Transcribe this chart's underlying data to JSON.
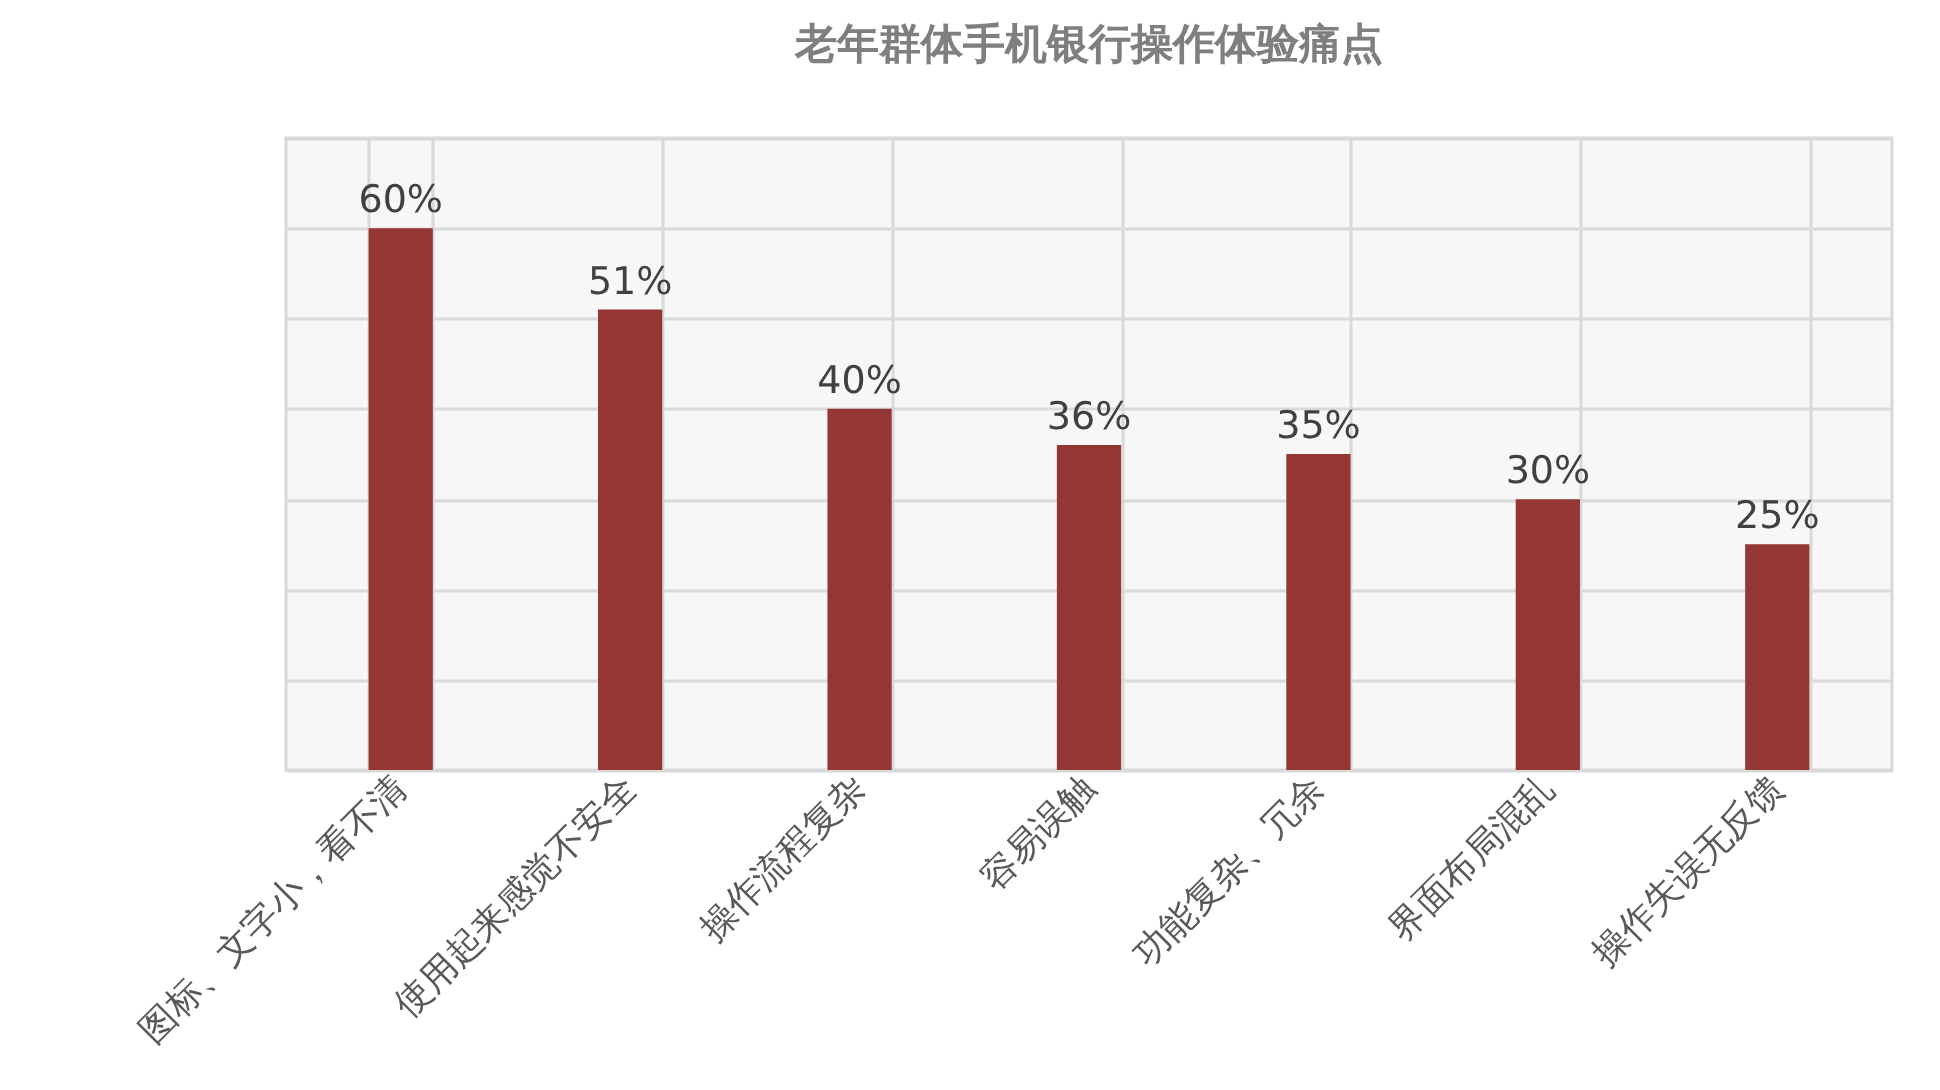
{
  "chart_data": {
    "type": "bar",
    "title": "老年群体手机银行操作体验痛点",
    "categories": [
      "图标、文字小，看不清",
      "使用起来感觉不安全",
      "操作流程复杂",
      "容易误触",
      "功能复杂、冗余",
      "界面布局混乱",
      "操作失误无反馈"
    ],
    "values": [
      60,
      51,
      40,
      36,
      35,
      30,
      25
    ],
    "value_labels": [
      "60%",
      "51%",
      "40%",
      "36%",
      "35%",
      "30%",
      "25%"
    ],
    "color": "#943634",
    "ylim": [
      0,
      70
    ],
    "yticks": [
      {
        "value": 0,
        "label": null
      },
      {
        "value": 10,
        "label": null
      },
      {
        "value": 20,
        "label": null
      },
      {
        "value": 30,
        "label": null
      },
      {
        "value": 40,
        "label": null
      },
      {
        "value": 50,
        "label": null
      },
      {
        "value": 60,
        "label": null
      },
      {
        "value": 70,
        "label": null
      }
    ],
    "tick_labels": "x",
    "grid": true
  }
}
